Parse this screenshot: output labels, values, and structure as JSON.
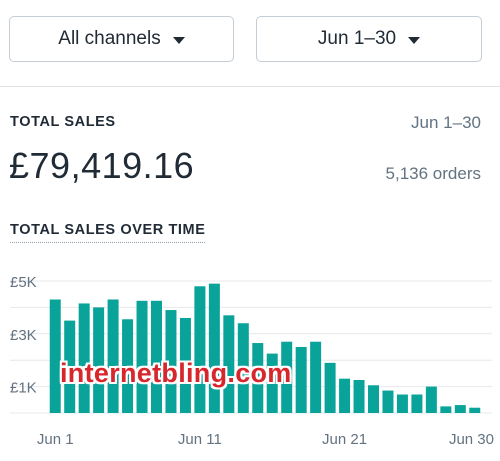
{
  "filters": {
    "channel_label": "All channels",
    "date_label": "Jun 1–30"
  },
  "summary": {
    "title": "TOTAL SALES",
    "date_range": "Jun 1–30",
    "total_value": "£79,419.16",
    "orders_text": "5,136 orders"
  },
  "chart_section": {
    "title": "TOTAL SALES OVER TIME"
  },
  "watermark": "internetbling.com",
  "colors": {
    "bar": "#0aa39a",
    "grid": "#e6e8eb",
    "text_muted": "#637381"
  },
  "chart_data": {
    "type": "bar",
    "title": "TOTAL SALES OVER TIME",
    "categories": [
      "Jun 1",
      "Jun 2",
      "Jun 3",
      "Jun 4",
      "Jun 5",
      "Jun 6",
      "Jun 7",
      "Jun 8",
      "Jun 9",
      "Jun 10",
      "Jun 11",
      "Jun 12",
      "Jun 13",
      "Jun 14",
      "Jun 15",
      "Jun 16",
      "Jun 17",
      "Jun 18",
      "Jun 19",
      "Jun 20",
      "Jun 21",
      "Jun 22",
      "Jun 23",
      "Jun 24",
      "Jun 25",
      "Jun 26",
      "Jun 27",
      "Jun 28",
      "Jun 29",
      "Jun 30"
    ],
    "values": [
      4300,
      3500,
      4150,
      4000,
      4300,
      3550,
      4250,
      4250,
      3900,
      3600,
      4800,
      4900,
      3700,
      3400,
      2650,
      2250,
      2700,
      2500,
      2700,
      1900,
      1300,
      1250,
      1050,
      850,
      700,
      700,
      1000,
      250,
      300,
      200
    ],
    "x_tick_labels": [
      "Jun 1",
      "Jun 11",
      "Jun 21",
      "Jun 30"
    ],
    "y_tick_labels": [
      "£5K",
      "£3K",
      "£1K"
    ],
    "y_ticks": [
      5000,
      3000,
      1000
    ],
    "ylim": [
      0,
      5000
    ],
    "grid": true
  }
}
